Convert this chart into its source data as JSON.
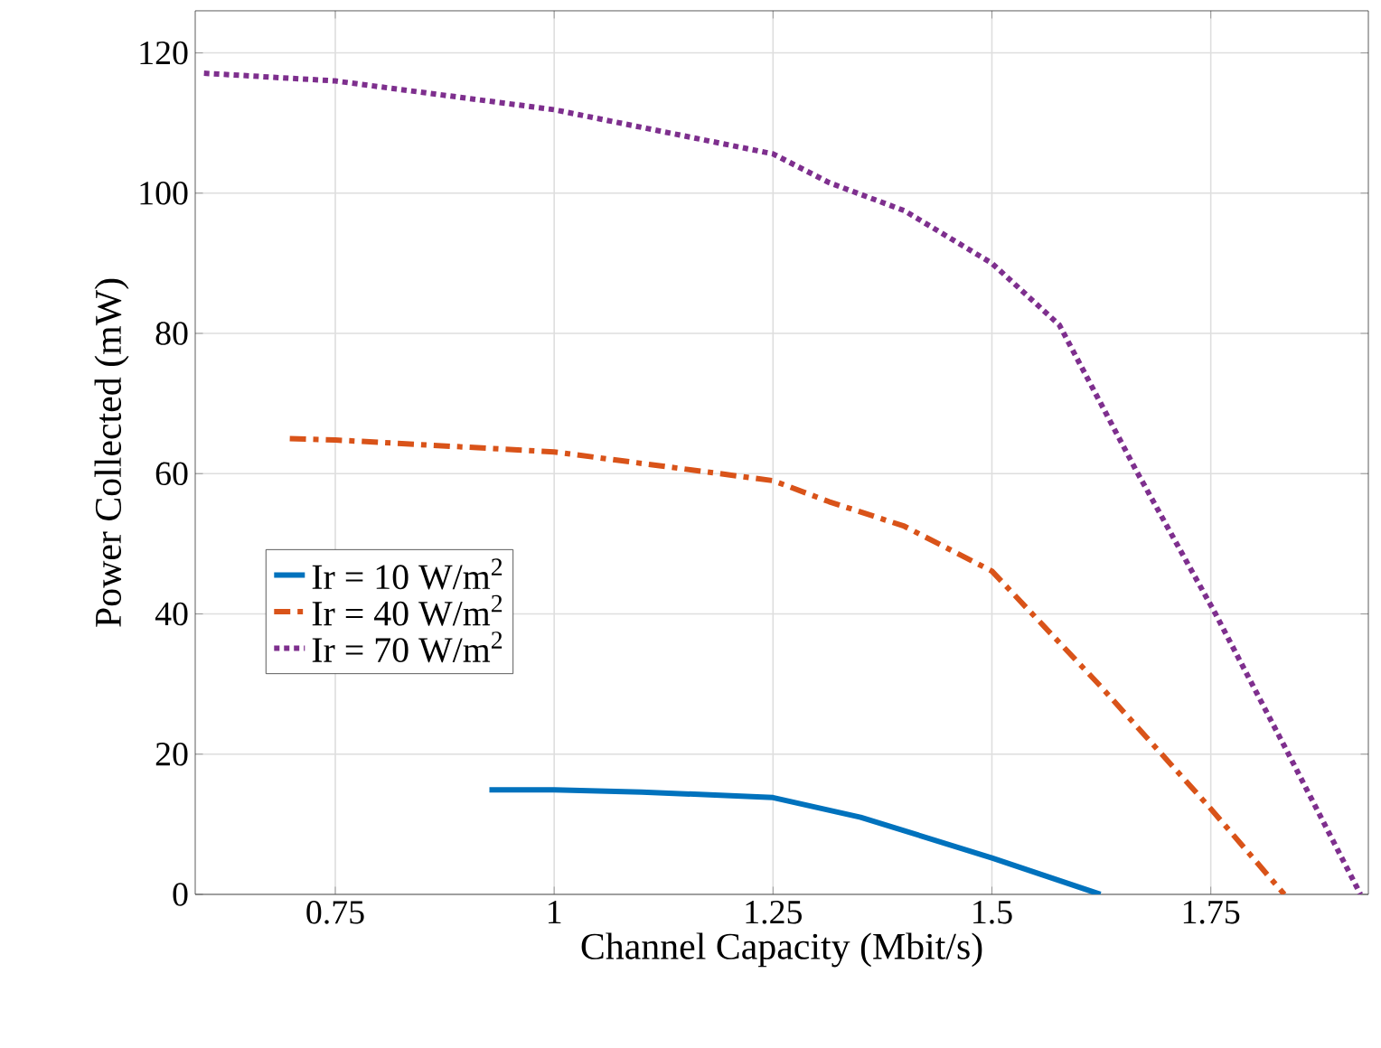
{
  "chart_data": {
    "type": "line",
    "xlabel": "Channel Capacity (Mbit/s)",
    "ylabel": "Power Collected (mW)",
    "xlim": [
      0.59,
      1.93
    ],
    "ylim": [
      0,
      126
    ],
    "xticks": [
      0.75,
      1,
      1.25,
      1.5,
      1.75
    ],
    "yticks": [
      0,
      20,
      40,
      60,
      80,
      100,
      120
    ],
    "grid": true,
    "legend": "left",
    "marker": "none",
    "series": [
      {
        "name": "Ir = 10 W/m$^{2}$",
        "color": "#0072bd",
        "line_style": "solid",
        "x": [
          0.926,
          1.0,
          1.1,
          1.25,
          1.35,
          1.5,
          1.624
        ],
        "values": [
          14.9,
          14.9,
          14.6,
          13.8,
          11.0,
          5.2,
          0
        ]
      },
      {
        "name": "Ir = 40 W/m$^{2}$",
        "color": "#d95319",
        "line_style": "dashed",
        "x": [
          0.698,
          0.75,
          1.0,
          1.25,
          1.314,
          1.4,
          1.5,
          1.624,
          1.748,
          1.834
        ],
        "values": [
          65.0,
          64.8,
          63.1,
          59.0,
          56.0,
          52.5,
          46.1,
          29.7,
          12.5,
          0
        ]
      },
      {
        "name": "Ir = 70 W/m$^{2}$",
        "color": "#7e2f8e",
        "line_style": "dotted",
        "x": [
          0.6,
          0.75,
          1.0,
          1.25,
          1.314,
          1.4,
          1.5,
          1.577,
          1.665,
          1.755,
          1.838,
          1.921
        ],
        "values": [
          117.1,
          116.0,
          111.9,
          105.6,
          101.5,
          97.5,
          90.0,
          81.2,
          60.4,
          40.1,
          20.2,
          0
        ]
      }
    ]
  }
}
